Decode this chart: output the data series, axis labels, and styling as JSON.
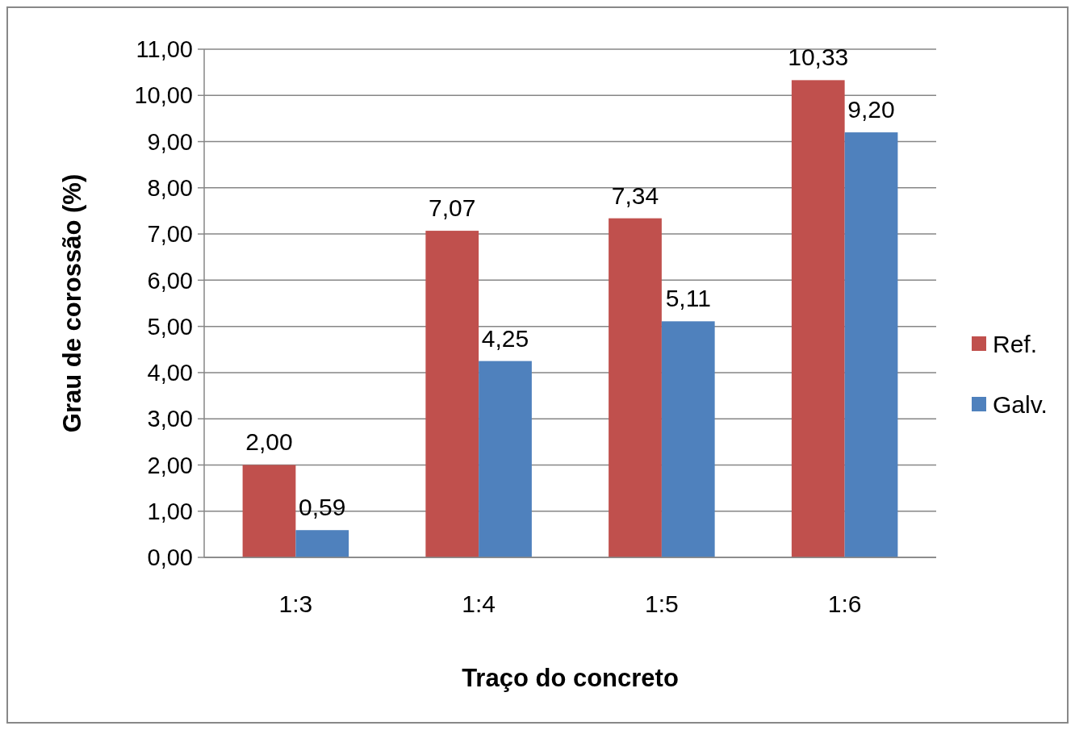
{
  "chart_data": {
    "type": "bar",
    "xlabel": "Traço do concreto",
    "ylabel": "Grau de corossão (%)",
    "categories": [
      "1:3",
      "1:4",
      "1:5",
      "1:6"
    ],
    "series": [
      {
        "name": "Ref.",
        "color": "#c0504d",
        "values": [
          2.0,
          7.07,
          7.34,
          10.33
        ],
        "value_labels": [
          "2,00",
          "7,07",
          "7,34",
          "10,33"
        ]
      },
      {
        "name": "Galv.",
        "color": "#4f81bd",
        "values": [
          0.59,
          4.25,
          5.11,
          9.2
        ],
        "value_labels": [
          "0,59",
          "4,25",
          "5,11",
          "9,20"
        ]
      }
    ],
    "ylim": [
      0,
      11
    ],
    "yticks": [
      {
        "value": 0,
        "label": "0,00"
      },
      {
        "value": 1,
        "label": "1,00"
      },
      {
        "value": 2,
        "label": "2,00"
      },
      {
        "value": 3,
        "label": "3,00"
      },
      {
        "value": 4,
        "label": "4,00"
      },
      {
        "value": 5,
        "label": "5,00"
      },
      {
        "value": 6,
        "label": "6,00"
      },
      {
        "value": 7,
        "label": "7,00"
      },
      {
        "value": 8,
        "label": "8,00"
      },
      {
        "value": 9,
        "label": "9,00"
      },
      {
        "value": 10,
        "label": "10,00"
      },
      {
        "value": 11,
        "label": "11,00"
      }
    ],
    "grid": "y",
    "legend": "right"
  }
}
